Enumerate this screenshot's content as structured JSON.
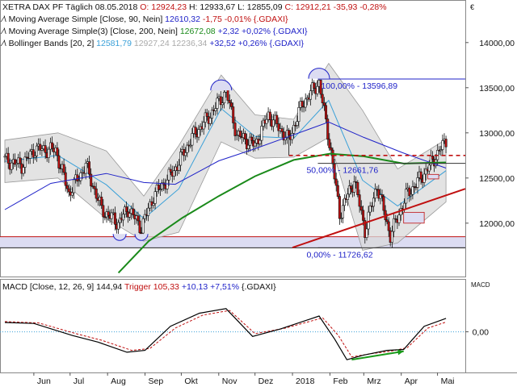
{
  "chart_data": [
    {
      "type": "candlestick",
      "instrument": "XETRA DAX PF",
      "period": "Täglich",
      "date": "08.05.2018",
      "ohlc_text": {
        "o_label": "O:",
        "o": "12924,23",
        "h_label": "H:",
        "h": "12933,67",
        "l_label": "L:",
        "l": "12855,09",
        "c_label": "C:",
        "c": "12912,21",
        "chg": "-35,93",
        "chg_pct": "-0,28%"
      },
      "indicators": [
        {
          "name": "Moving Average Simple",
          "params": "[Close, 90, Nein]",
          "value": "12610,32",
          "change": "-1,75",
          "change_pct": "-0,01%",
          "symbol": "{.GDAXI}",
          "color": "#1f22c8"
        },
        {
          "name": "Moving Average Simple(3)",
          "params": "[Close, 200, Nein]",
          "value": "12672,08",
          "change": "+2,32",
          "change_pct": "+0,02%",
          "symbol": "{.GDAXI}",
          "color": "#1a8a1a"
        },
        {
          "name": "Bollinger Bands",
          "params": "[20, 2]",
          "value": "12581,79",
          "upper": "12927,24",
          "lower": "12236,34",
          "change": "+32,52",
          "change_pct": "+0,26%",
          "symbol": "{.GDAXI}",
          "color": "#3aa0d8"
        }
      ],
      "y_ticks": [
        "14000,00",
        "13500,00",
        "13000,00",
        "12500,00",
        "12000,00"
      ],
      "y_tick_values": [
        14000,
        13500,
        13000,
        12500,
        12000
      ],
      "ylim": [
        11400,
        14400
      ],
      "x_labels": [
        "Jun",
        "Jul",
        "Aug",
        "Sep",
        "Okt",
        "Nov",
        "Dez",
        "2018",
        "Feb",
        "Mrz",
        "Apr",
        "Mai"
      ],
      "x_label_dates": [
        "2017-06-01",
        "2017-07-01",
        "2017-08-01",
        "2017-09-01",
        "2017-10-01",
        "2017-11-01",
        "2017-12-01",
        "2018-01-01",
        "2018-02-01",
        "2018-03-01",
        "2018-04-01",
        "2018-05-01"
      ],
      "x_range": [
        "2017-05-04",
        "2018-05-24"
      ],
      "close_series": [
        [
          "2017-05-08",
          12700
        ],
        [
          "2017-05-22",
          12640
        ],
        [
          "2017-06-02",
          12820
        ],
        [
          "2017-06-19",
          12810
        ],
        [
          "2017-06-30",
          12330
        ],
        [
          "2017-07-14",
          12640
        ],
        [
          "2017-07-27",
          12150
        ],
        [
          "2017-08-10",
          12000
        ],
        [
          "2017-08-18",
          12160
        ],
        [
          "2017-08-29",
          11950
        ],
        [
          "2017-09-08",
          12300
        ],
        [
          "2017-09-25",
          12580
        ],
        [
          "2017-10-10",
          12950
        ],
        [
          "2017-10-25",
          13200
        ],
        [
          "2017-11-07",
          13460
        ],
        [
          "2017-11-16",
          12980
        ],
        [
          "2017-12-01",
          12860
        ],
        [
          "2017-12-12",
          13200
        ],
        [
          "2017-12-29",
          12920
        ],
        [
          "2018-01-09",
          13320
        ],
        [
          "2018-01-23",
          13560
        ],
        [
          "2018-02-02",
          12780
        ],
        [
          "2018-02-09",
          12100
        ],
        [
          "2018-02-21",
          12480
        ],
        [
          "2018-03-02",
          11920
        ],
        [
          "2018-03-12",
          12420
        ],
        [
          "2018-03-23",
          11860
        ],
        [
          "2018-04-05",
          12300
        ],
        [
          "2018-04-20",
          12550
        ],
        [
          "2018-05-08",
          12912
        ]
      ],
      "ma90_series": [
        [
          "2017-05-08",
          12150
        ],
        [
          "2017-06-15",
          12440
        ],
        [
          "2017-07-31",
          12550
        ],
        [
          "2017-08-31",
          12450
        ],
        [
          "2017-09-26",
          12430
        ],
        [
          "2017-11-01",
          12690
        ],
        [
          "2017-11-30",
          12820
        ],
        [
          "2017-12-29",
          12960
        ],
        [
          "2018-01-31",
          13120
        ],
        [
          "2018-03-01",
          12950
        ],
        [
          "2018-04-02",
          12780
        ],
        [
          "2018-05-08",
          12610
        ]
      ],
      "ma200_series": [
        [
          "2017-08-10",
          11450
        ],
        [
          "2017-09-04",
          11800
        ],
        [
          "2017-10-02",
          12060
        ],
        [
          "2017-11-01",
          12300
        ],
        [
          "2017-12-01",
          12520
        ],
        [
          "2018-01-02",
          12700
        ],
        [
          "2018-02-01",
          12770
        ],
        [
          "2018-03-01",
          12740
        ],
        [
          "2018-04-03",
          12660
        ],
        [
          "2018-05-08",
          12672
        ]
      ],
      "bollinger": {
        "upper": [
          [
            "2017-05-08",
            12920
          ],
          [
            "2017-06-21",
            13000
          ],
          [
            "2017-07-31",
            12800
          ],
          [
            "2017-08-31",
            12300
          ],
          [
            "2017-09-29",
            12860
          ],
          [
            "2017-11-03",
            13640
          ],
          [
            "2017-12-01",
            13200
          ],
          [
            "2018-01-02",
            13150
          ],
          [
            "2018-01-31",
            13770
          ],
          [
            "2018-02-28",
            13250
          ],
          [
            "2018-03-29",
            12600
          ],
          [
            "2018-05-08",
            12927
          ]
        ],
        "lower": [
          [
            "2017-05-08",
            12450
          ],
          [
            "2017-06-21",
            12500
          ],
          [
            "2017-07-31",
            12050
          ],
          [
            "2017-08-31",
            11800
          ],
          [
            "2017-09-29",
            11900
          ],
          [
            "2017-11-03",
            12900
          ],
          [
            "2017-12-01",
            12720
          ],
          [
            "2018-01-02",
            12730
          ],
          [
            "2018-01-31",
            12950
          ],
          [
            "2018-02-28",
            11700
          ],
          [
            "2018-03-29",
            11780
          ],
          [
            "2018-05-08",
            12236
          ]
        ]
      },
      "annotations": {
        "fib_top_label": "100,00% - 13596,89",
        "fib_top_value": 13596.89,
        "fib_mid_label": "50,00% - 12661,76",
        "fib_mid_value": 12661.76,
        "fib_bottom_label": "0,00% - 11726,62",
        "fib_bottom_value": 11726.62,
        "support_zone": [
          11726.62,
          11850
        ],
        "dashed_resistance_value": 12750,
        "trendline": [
          [
            "2018-01-01",
            11730
          ],
          [
            "2018-05-24",
            12380
          ]
        ]
      },
      "colors": {
        "up": "#ffffff",
        "down": "#c01010",
        "support": "#c01010",
        "zone": "#dcdcf2",
        "fib": "#1f22c8"
      }
    },
    {
      "type": "line",
      "name": "MACD",
      "params": "[Close, 12, 26, 9]",
      "value": "144,94",
      "trigger_name": "Trigger",
      "trigger_value": "105,33",
      "trigger_change": "+10,13",
      "trigger_change_pct": "+7,51%",
      "symbol": "{.GDAXI}",
      "axis_title": "MACD",
      "y_ticks": [
        "0,00"
      ],
      "y_tick_values": [
        0
      ],
      "ylim": [
        -420,
        430
      ],
      "macd_series": [
        [
          "2017-05-08",
          100
        ],
        [
          "2017-06-01",
          90
        ],
        [
          "2017-07-03",
          -40
        ],
        [
          "2017-07-24",
          -110
        ],
        [
          "2017-08-17",
          -220
        ],
        [
          "2017-09-01",
          -200
        ],
        [
          "2017-09-22",
          60
        ],
        [
          "2017-10-16",
          200
        ],
        [
          "2017-11-07",
          250
        ],
        [
          "2017-11-29",
          -50
        ],
        [
          "2017-12-22",
          30
        ],
        [
          "2018-01-23",
          170
        ],
        [
          "2018-02-05",
          -80
        ],
        [
          "2018-02-15",
          -300
        ],
        [
          "2018-03-01",
          -250
        ],
        [
          "2018-03-20",
          -200
        ],
        [
          "2018-04-03",
          -190
        ],
        [
          "2018-04-20",
          60
        ],
        [
          "2018-05-08",
          145
        ]
      ],
      "trigger_series": [
        [
          "2017-05-08",
          110
        ],
        [
          "2017-06-05",
          95
        ],
        [
          "2017-07-06",
          -20
        ],
        [
          "2017-07-27",
          -90
        ],
        [
          "2017-08-21",
          -200
        ],
        [
          "2017-09-05",
          -180
        ],
        [
          "2017-09-26",
          40
        ],
        [
          "2017-10-19",
          180
        ],
        [
          "2017-11-10",
          230
        ],
        [
          "2017-12-01",
          -20
        ],
        [
          "2017-12-26",
          40
        ],
        [
          "2018-01-26",
          150
        ],
        [
          "2018-02-08",
          -40
        ],
        [
          "2018-02-19",
          -270
        ],
        [
          "2018-03-05",
          -240
        ],
        [
          "2018-03-23",
          -210
        ],
        [
          "2018-04-06",
          -170
        ],
        [
          "2018-04-23",
          40
        ],
        [
          "2018-05-08",
          105
        ]
      ],
      "divergence_arrow": [
        [
          "2018-02-19",
          -300
        ],
        [
          "2018-04-03",
          -210
        ]
      ],
      "colors": {
        "macd": "#000000",
        "trigger": "#c01010",
        "arrow": "#1a9a1a",
        "zero": "#3aa0d8"
      }
    }
  ]
}
